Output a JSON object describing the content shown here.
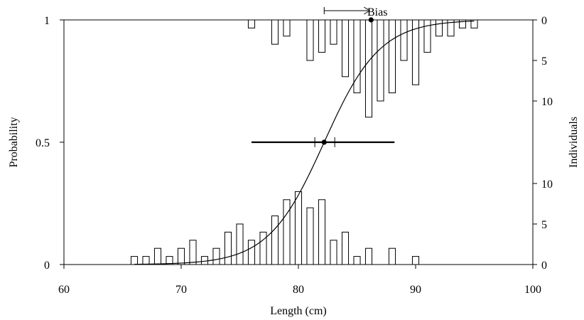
{
  "chart_data": {
    "type": "bar",
    "xlabel": "Length (cm)",
    "ylabel_left": "Probability",
    "ylabel_right": "Individuals",
    "xlim": [
      60,
      100
    ],
    "ylim": [
      0,
      1
    ],
    "x_ticks": [
      60,
      70,
      80,
      90,
      100
    ],
    "y_ticks": [
      {
        "value": 0,
        "label": "0"
      },
      {
        "value": 0.5,
        "label": "0.5"
      },
      {
        "value": 1,
        "label": "1"
      }
    ],
    "right_axis_top": {
      "ticks": [
        0,
        5,
        10
      ],
      "direction": "down from 1"
    },
    "right_axis_bottom": {
      "ticks": [
        0,
        5,
        10
      ],
      "direction": "up from 0"
    },
    "bin_width": 1,
    "series": [
      {
        "role": "bottom-histogram",
        "x": [
          66,
          67,
          68,
          69,
          70,
          71,
          72,
          73,
          74,
          75,
          76,
          77,
          78,
          79,
          80,
          81,
          82,
          83,
          84,
          85,
          86,
          88,
          90
        ],
        "values": [
          1,
          1,
          2,
          1,
          2,
          3,
          1,
          2,
          4,
          5,
          3,
          4,
          6,
          8,
          9,
          7,
          8,
          3,
          4,
          1,
          2,
          2,
          1
        ]
      },
      {
        "role": "top-histogram",
        "x": [
          76,
          78,
          79,
          81,
          82,
          83,
          84,
          85,
          86,
          87,
          88,
          89,
          90,
          91,
          92,
          93,
          94,
          95
        ],
        "values": [
          1,
          3,
          2,
          5,
          4,
          3,
          7,
          9,
          12,
          10,
          9,
          5,
          8,
          4,
          2,
          2,
          1,
          1
        ]
      },
      {
        "role": "logistic-curve",
        "midpoint": 82.2,
        "slope": 0.42,
        "x_range": [
          66,
          95
        ]
      }
    ],
    "annotations": {
      "bias_label": "Bias",
      "bias_arrow": {
        "from": 82.2,
        "to": 86.2,
        "y": 1.04
      },
      "top_point": {
        "x": 86.2,
        "y": 1.0
      },
      "mid_point": {
        "x": 82.2,
        "y": 0.5
      },
      "interval_outer": [
        76,
        88.2
      ],
      "interval_inner": [
        81.4,
        83.1
      ]
    }
  }
}
